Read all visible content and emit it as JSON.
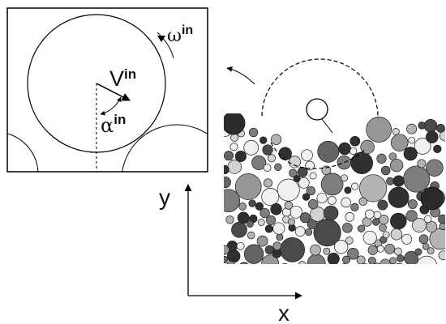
{
  "inset": {
    "velocity_symbol": "V",
    "velocity_superscript": "in",
    "angle_symbol": "α",
    "angle_superscript": "in",
    "spin_symbol": "ω",
    "spin_superscript": "in"
  },
  "axes": {
    "y_label": "y",
    "x_label": "x"
  },
  "colors": {
    "stroke": "#000000",
    "grain_shades": [
      "#303030",
      "#4a4a4a",
      "#646464",
      "#7d7d7d",
      "#979797",
      "#b4b4b4",
      "#d2d2d2",
      "#f0f0f0"
    ]
  }
}
